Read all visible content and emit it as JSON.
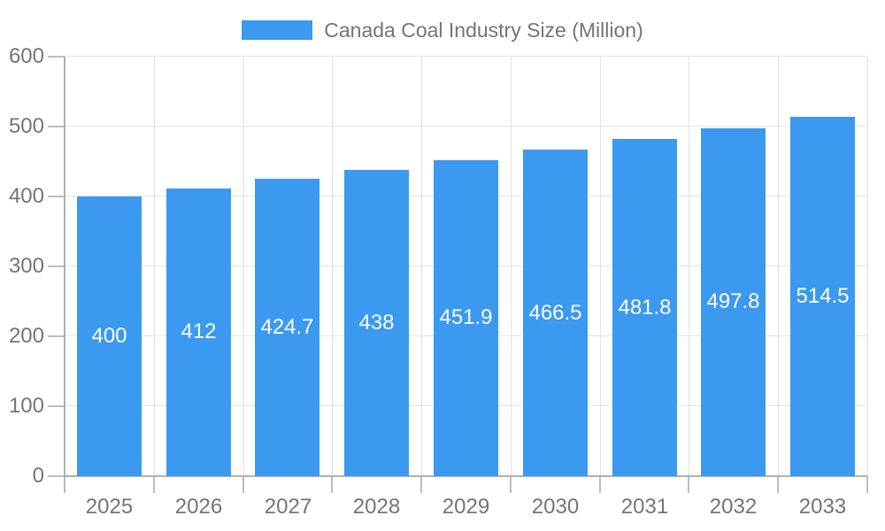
{
  "chart_data": {
    "type": "bar",
    "title": "Canada Coal Industry Size (Million)",
    "categories": [
      "2025",
      "2026",
      "2027",
      "2028",
      "2029",
      "2030",
      "2031",
      "2032",
      "2033"
    ],
    "values": [
      400,
      412,
      424.7,
      438,
      451.9,
      466.5,
      481.8,
      497.8,
      514.5
    ],
    "xlabel": "",
    "ylabel": "",
    "ylim": [
      0,
      600
    ],
    "yticks": [
      0,
      100,
      200,
      300,
      400,
      500,
      600
    ],
    "grid": true,
    "legend_position": "top-center",
    "colors": {
      "bar": "#3B99F0",
      "bar_value_text": "#ffffff",
      "axis_text": "#757575",
      "legend_text": "#757575",
      "gridline": "#e3e3e3",
      "axis_line": "#b0b0b0",
      "tick_mark": "#bdbdbd",
      "background": "#ffffff"
    }
  }
}
